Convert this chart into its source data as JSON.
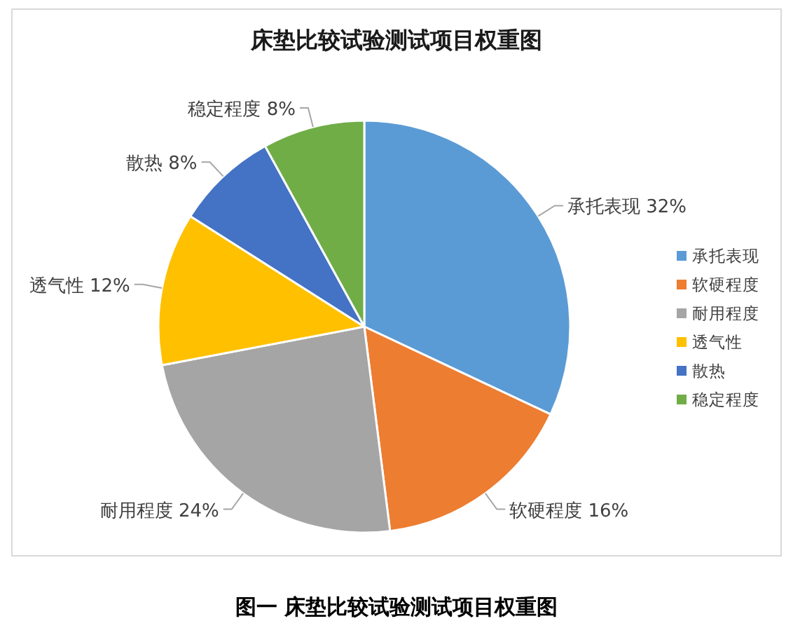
{
  "chart_data": {
    "type": "pie",
    "title": "床垫比较试验测试项目权重图",
    "categories": [
      "承托表现",
      "软硬程度",
      "耐用程度",
      "透气性",
      "散热",
      "稳定程度"
    ],
    "values": [
      32,
      16,
      24,
      12,
      8,
      8
    ],
    "colors": [
      "#5b9bd5",
      "#ed7d31",
      "#a5a5a5",
      "#ffc000",
      "#4472c4",
      "#70ad47"
    ],
    "value_labels": [
      "32%",
      "16%",
      "24%",
      "12%",
      "8%",
      "8%"
    ],
    "legend": "right",
    "annotations": [
      "图一  床垫比较试验测试项目权重图"
    ]
  }
}
